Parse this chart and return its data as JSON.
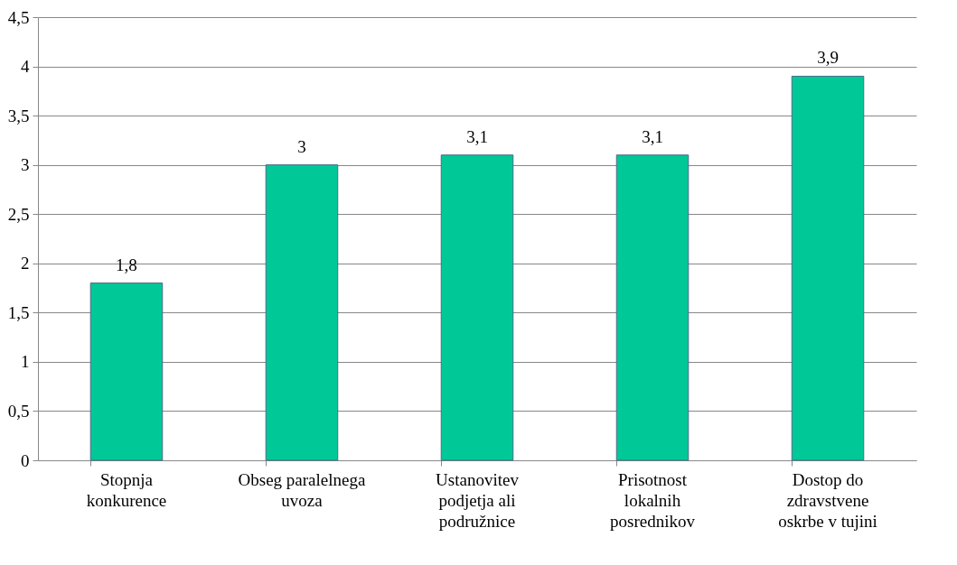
{
  "chart_data": {
    "type": "bar",
    "categories": [
      "Stopnja konkurence",
      "Obseg paralelnega uvoza",
      "Ustanovitev podjetja ali podružnice",
      "Prisotnost lokalnih posrednikov",
      "Dostop do zdravstvene oskrbe v tujini"
    ],
    "values": [
      1.8,
      3,
      3.1,
      3.1,
      3.9
    ],
    "value_labels": [
      "1,8",
      "3",
      "3,1",
      "3,1",
      "3,9"
    ],
    "color": "#00c896",
    "ylim": [
      0,
      4.5
    ],
    "yticks": [
      0,
      {
        "value": 0.5,
        "label": "0,5"
      },
      1,
      {
        "value": 1.5,
        "label": "1,5"
      },
      2,
      {
        "value": 2.5,
        "label": "2,5"
      },
      3,
      {
        "value": 3.5,
        "label": "3,5"
      },
      4,
      {
        "value": 4.5,
        "label": "4,5"
      }
    ],
    "grid": "y"
  }
}
